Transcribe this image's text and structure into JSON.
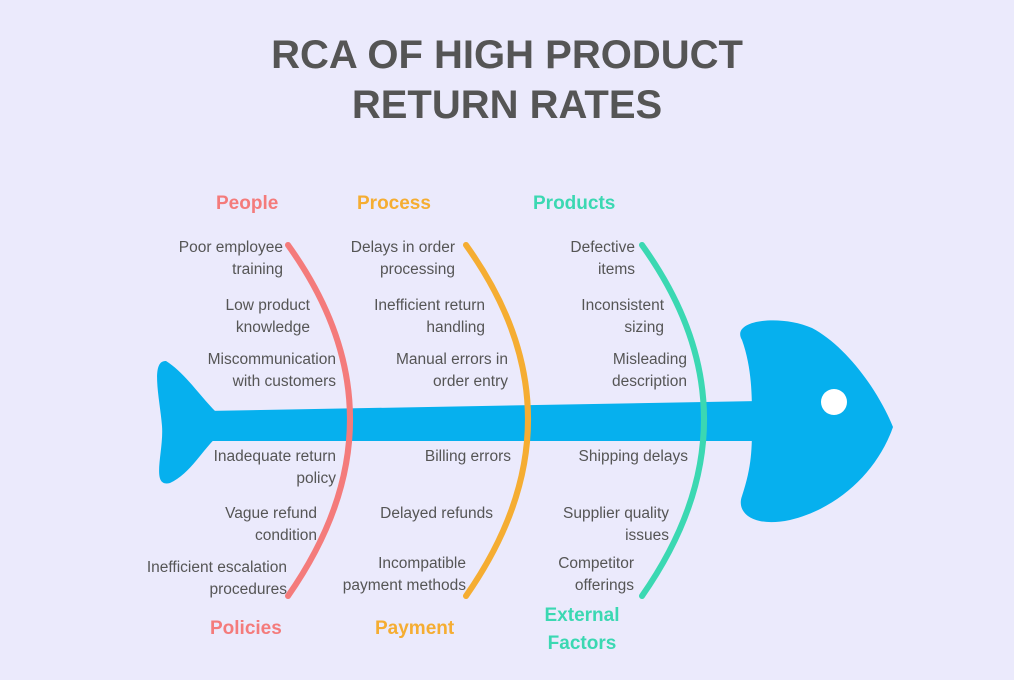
{
  "title": {
    "line1": "RCA OF HIGH PRODUCT",
    "line2": "RETURN RATES"
  },
  "colors": {
    "background": "#ebeafc",
    "fish": "#06b0ee",
    "people": "#f47b7b",
    "process": "#f5ad32",
    "products": "#3bd8b2",
    "text": "#555555"
  },
  "categories": {
    "people": "People",
    "process": "Process",
    "products": "Products",
    "policies": "Policies",
    "payment": "Payment",
    "external_line1": "External",
    "external_line2": "Factors"
  },
  "causes": {
    "people": [
      [
        "Poor employee",
        "training"
      ],
      [
        "Low product",
        "knowledge"
      ],
      [
        "Miscommunication",
        "with customers"
      ]
    ],
    "policies": [
      [
        "Inadequate return",
        "policy"
      ],
      [
        "Vague refund",
        "condition"
      ],
      [
        "Inefficient escalation",
        "procedures"
      ]
    ],
    "process": [
      [
        "Delays in order",
        "processing"
      ],
      [
        "Inefficient return",
        "handling"
      ],
      [
        "Manual errors in",
        "order entry"
      ]
    ],
    "payment": [
      [
        "Billing errors"
      ],
      [
        "Delayed refunds"
      ],
      [
        "Incompatible",
        "payment methods"
      ]
    ],
    "products": [
      [
        "Defective",
        "items"
      ],
      [
        "Inconsistent",
        "sizing"
      ],
      [
        "Misleading",
        "description"
      ]
    ],
    "external": [
      [
        "Shipping delays"
      ],
      [
        "Supplier quality",
        "issues"
      ],
      [
        "Competitor",
        "offerings"
      ]
    ]
  }
}
